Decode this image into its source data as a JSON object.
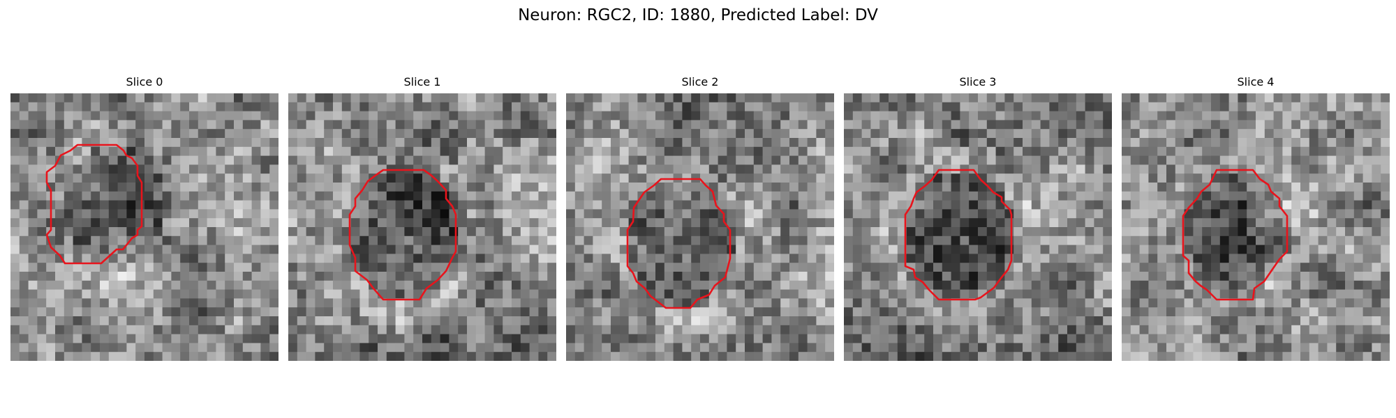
{
  "figure": {
    "title": "Neuron: RGC2, ID: 1880, Predicted Label: DV"
  },
  "colors": {
    "contour": "#e8141c",
    "background": "#ffffff",
    "image_colormap": "gray"
  },
  "slices": [
    {
      "title": "Slice 0",
      "image": "grayscale-microscopy-patch",
      "overlay": "red-roi-contour"
    },
    {
      "title": "Slice 1",
      "image": "grayscale-microscopy-patch",
      "overlay": "red-roi-contour"
    },
    {
      "title": "Slice 2",
      "image": "grayscale-microscopy-patch",
      "overlay": "red-roi-contour"
    },
    {
      "title": "Slice 3",
      "image": "grayscale-microscopy-patch",
      "overlay": "red-roi-contour"
    },
    {
      "title": "Slice 4",
      "image": "grayscale-microscopy-patch",
      "overlay": "red-roi-contour"
    }
  ]
}
